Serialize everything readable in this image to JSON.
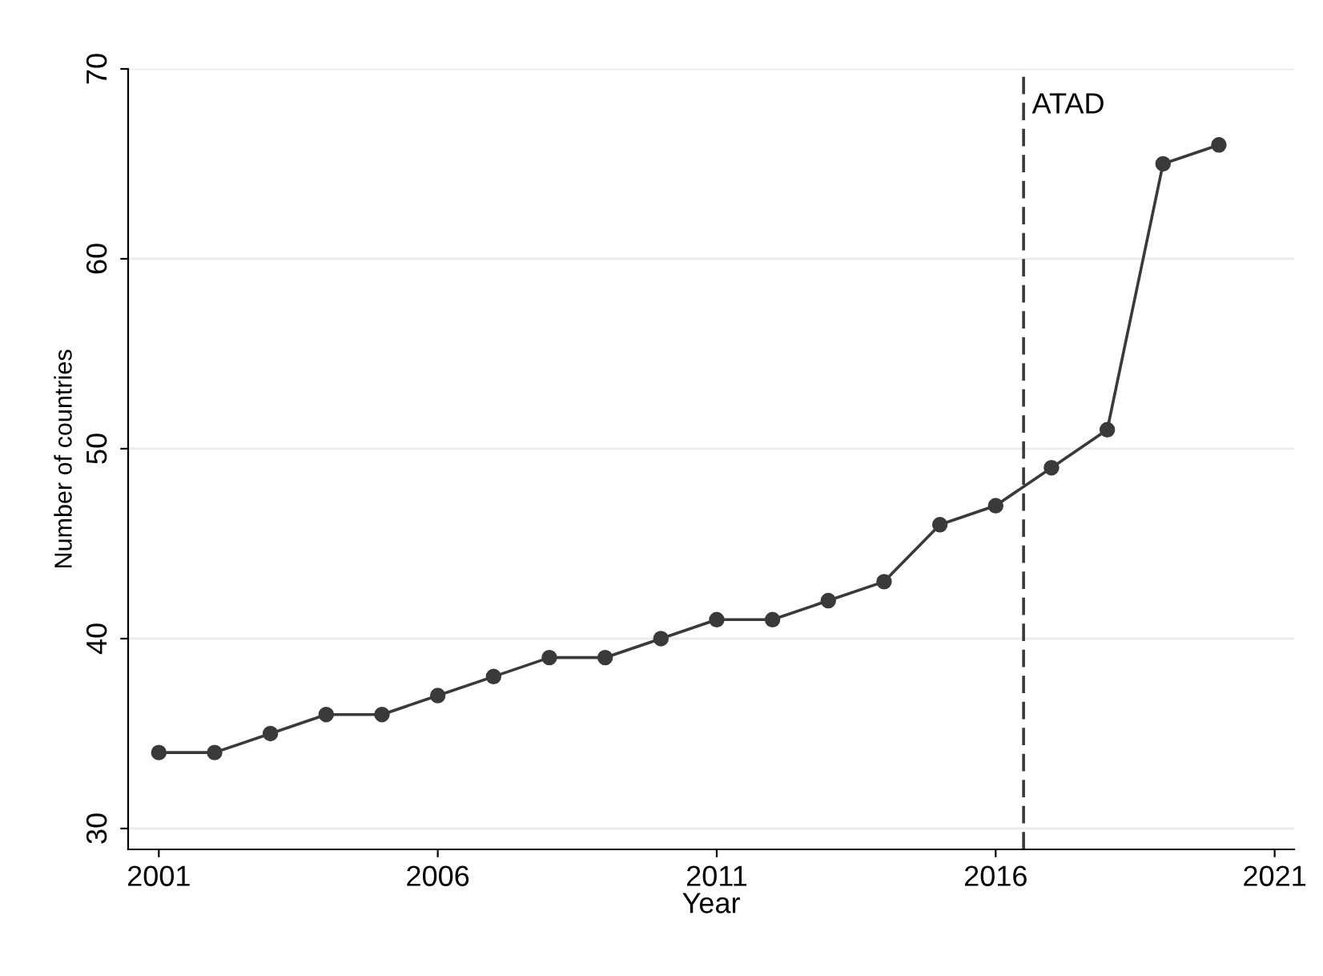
{
  "chart_data": {
    "type": "line",
    "xlabel": "Year",
    "ylabel": "Number of countries",
    "x": [
      2001,
      2002,
      2003,
      2004,
      2005,
      2006,
      2007,
      2008,
      2009,
      2010,
      2011,
      2012,
      2013,
      2014,
      2015,
      2016,
      2017,
      2018,
      2019,
      2020
    ],
    "series": [
      {
        "color": "#3a3a3a",
        "values": [
          34,
          34,
          35,
          36,
          36,
          37,
          38,
          39,
          39,
          40,
          41,
          41,
          42,
          43,
          46,
          47,
          49,
          51,
          65,
          66
        ]
      }
    ],
    "xlim": [
      2000.45,
      2021.35
    ],
    "xticks": [
      2001,
      2006,
      2011,
      2016,
      2021
    ],
    "ylim": [
      28.9,
      70
    ],
    "yticks": [
      30,
      40,
      50,
      60,
      70
    ],
    "ref_lines": [
      {
        "axis": "x",
        "value": 2016.5,
        "label": "ATAD",
        "color": "#3a3a3a",
        "line_style": "dashed"
      }
    ],
    "grid": "y",
    "marker": "circle",
    "line_style": "solid",
    "legend": false
  }
}
